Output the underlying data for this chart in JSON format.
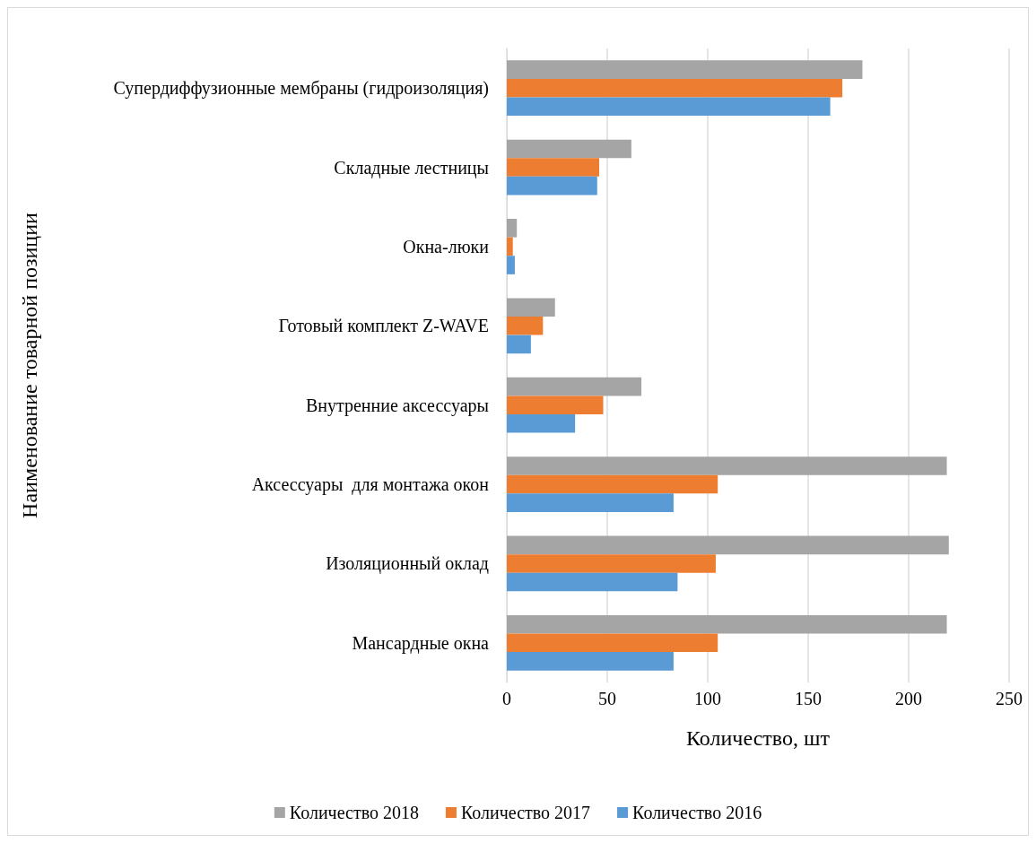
{
  "chart_data": {
    "type": "bar",
    "orientation": "horizontal",
    "xlabel": "Количество, шт",
    "ylabel": "Наименование товарной позиции",
    "categories": [
      "Супердиффузионные мембраны (гидроизоляция)",
      "Складные лестницы",
      "Окна-люки",
      "Готовый комплект Z-WAVE",
      "Внутренние аксессуары",
      "Аксессуары  для монтажа окон",
      "Изоляционный оклад",
      "Мансардные окна"
    ],
    "series": [
      {
        "name": "Количество 2018",
        "color": "#a5a5a5",
        "values": [
          177,
          62,
          5,
          24,
          67,
          219,
          220,
          219
        ]
      },
      {
        "name": "Количество 2017",
        "color": "#ed7d31",
        "values": [
          167,
          46,
          3,
          18,
          48,
          105,
          104,
          105
        ]
      },
      {
        "name": "Количество 2016",
        "color": "#5b9bd5",
        "values": [
          161,
          45,
          4,
          12,
          34,
          83,
          85,
          83
        ]
      }
    ],
    "xlim": [
      0,
      250
    ],
    "xticks": [
      0,
      50,
      100,
      150,
      200,
      250
    ],
    "grid": "x",
    "legend": "bottom"
  }
}
